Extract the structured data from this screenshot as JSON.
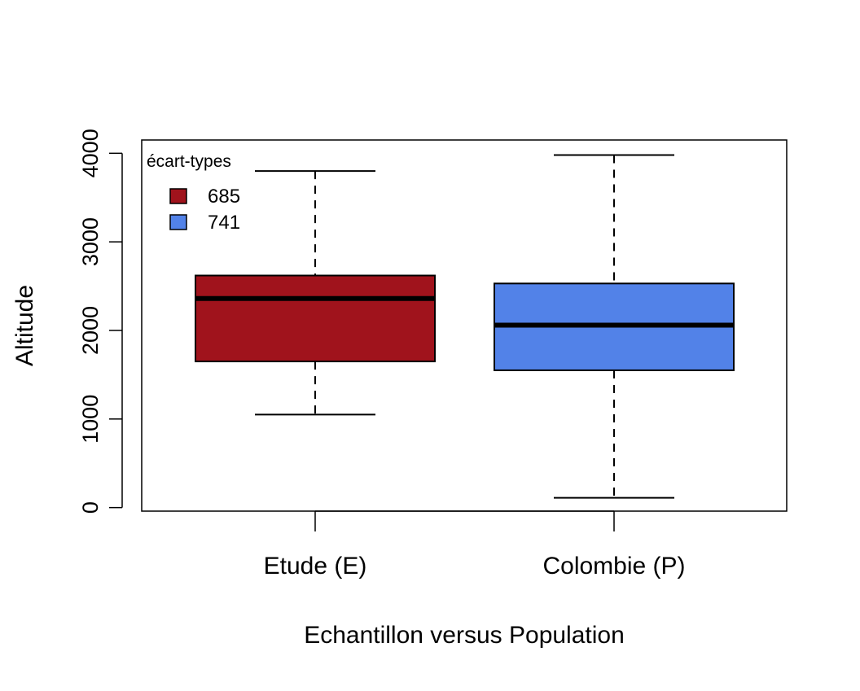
{
  "chart_data": {
    "type": "box",
    "title": "",
    "xlabel": "Echantillon versus Population",
    "ylabel": "Altitude",
    "ylim": [
      -40,
      4150
    ],
    "yticks": [
      0,
      1000,
      2000,
      3000,
      4000
    ],
    "grid": false,
    "categories": [
      "Etude (E)",
      "Colombie (P)"
    ],
    "boxes": [
      {
        "label": "Etude (E)",
        "color": "#A0131C",
        "whisker_low": 1050,
        "q1": 1650,
        "median": 2360,
        "q3": 2620,
        "whisker_high": 3800
      },
      {
        "label": "Colombie (P)",
        "color": "#5282E8",
        "whisker_low": 110,
        "q1": 1550,
        "median": 2060,
        "q3": 2530,
        "whisker_high": 3980
      }
    ],
    "legend": {
      "title": "écart-types",
      "position": "top-left",
      "entries": [
        {
          "label": "685",
          "color": "#A0131C"
        },
        {
          "label": "741",
          "color": "#5282E8"
        }
      ]
    }
  }
}
